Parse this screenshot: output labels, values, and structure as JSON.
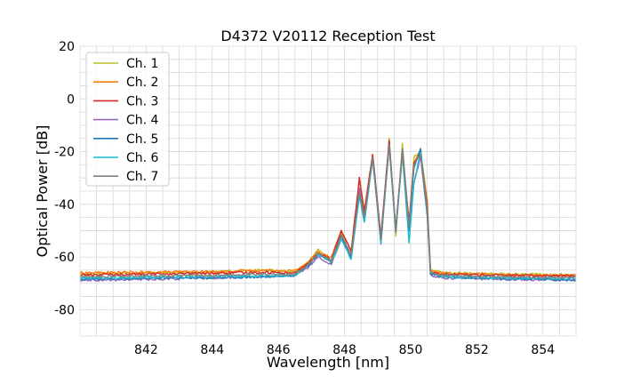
{
  "chart_data": {
    "type": "line",
    "title": "D4372 V20112 Reception Test",
    "xlabel": "Wavelength [nm]",
    "ylabel": "Optical Power [dB]",
    "xlim": [
      840,
      855
    ],
    "ylim": [
      -90,
      20
    ],
    "xticks": [
      842,
      844,
      846,
      848,
      850,
      852,
      854
    ],
    "yticks": [
      20,
      0,
      -20,
      -40,
      -60,
      -80
    ],
    "grid": true,
    "legend_position": "upper-left",
    "series": [
      {
        "name": "Ch. 1",
        "color": "#bcbd22",
        "x": [
          840.0,
          842.0,
          844.0,
          845.5,
          846.5,
          846.9,
          847.2,
          847.6,
          847.9,
          848.2,
          848.45,
          848.6,
          848.85,
          849.1,
          849.35,
          849.55,
          849.75,
          849.95,
          850.1,
          850.3,
          850.5,
          850.6,
          851.0,
          853.0,
          855.0
        ],
        "y": [
          -66.5,
          -66.0,
          -65.8,
          -65.0,
          -65.5,
          -62.0,
          -57.0,
          -62.0,
          -51.0,
          -60.0,
          -36.0,
          -44.0,
          -22.0,
          -54.0,
          -15.0,
          -52.0,
          -17.0,
          -48.0,
          -22.0,
          -20.0,
          -38.0,
          -65.0,
          -66.0,
          -66.5,
          -66.8
        ]
      },
      {
        "name": "Ch. 2",
        "color": "#ff7f0e",
        "x": [
          840.0,
          842.0,
          844.0,
          845.5,
          846.5,
          846.9,
          847.2,
          847.6,
          847.9,
          848.2,
          848.45,
          848.6,
          848.85,
          849.1,
          849.35,
          849.55,
          849.75,
          849.95,
          850.1,
          850.3,
          850.5,
          850.6,
          851.0,
          853.0,
          855.0
        ],
        "y": [
          -66.0,
          -65.8,
          -65.5,
          -65.0,
          -65.2,
          -62.0,
          -58.0,
          -60.0,
          -50.0,
          -58.0,
          -31.0,
          -42.0,
          -21.0,
          -53.0,
          -16.0,
          -49.0,
          -20.0,
          -47.0,
          -24.0,
          -20.0,
          -40.0,
          -65.0,
          -66.2,
          -66.8,
          -67.0
        ]
      },
      {
        "name": "Ch. 3",
        "color": "#d62728",
        "x": [
          840.0,
          842.0,
          844.0,
          845.5,
          846.5,
          846.9,
          847.2,
          847.6,
          847.9,
          848.2,
          848.45,
          848.6,
          848.85,
          849.1,
          849.35,
          849.55,
          849.75,
          849.95,
          850.1,
          850.3,
          850.5,
          850.6,
          851.0,
          853.0,
          855.0
        ],
        "y": [
          -66.8,
          -66.5,
          -66.2,
          -65.8,
          -66.0,
          -62.5,
          -58.5,
          -61.0,
          -50.0,
          -58.0,
          -30.0,
          -43.0,
          -21.0,
          -52.0,
          -16.0,
          -50.0,
          -20.0,
          -47.0,
          -24.0,
          -21.0,
          -40.0,
          -65.5,
          -66.5,
          -67.0,
          -67.2
        ]
      },
      {
        "name": "Ch. 4",
        "color": "#9467bd",
        "x": [
          840.0,
          842.0,
          844.0,
          845.5,
          846.5,
          846.9,
          847.2,
          847.6,
          847.9,
          848.2,
          848.45,
          848.6,
          848.85,
          849.1,
          849.35,
          849.55,
          849.75,
          849.95,
          850.1,
          850.3,
          850.5,
          850.6,
          851.0,
          853.0,
          855.0
        ],
        "y": [
          -69.0,
          -68.5,
          -68.0,
          -67.5,
          -67.0,
          -64.0,
          -60.0,
          -63.0,
          -53.0,
          -61.0,
          -34.0,
          -45.0,
          -22.0,
          -55.0,
          -17.0,
          -50.0,
          -19.0,
          -50.0,
          -32.0,
          -22.0,
          -44.0,
          -67.0,
          -68.0,
          -68.5,
          -68.8
        ]
      },
      {
        "name": "Ch. 5",
        "color": "#1f77b4",
        "x": [
          840.0,
          842.0,
          844.0,
          845.5,
          846.5,
          846.9,
          847.2,
          847.6,
          847.9,
          848.2,
          848.45,
          848.6,
          848.85,
          849.1,
          849.35,
          849.55,
          849.75,
          849.95,
          850.1,
          850.3,
          850.5,
          850.6,
          851.0,
          853.0,
          855.0
        ],
        "y": [
          -68.5,
          -68.0,
          -67.8,
          -67.5,
          -67.0,
          -63.5,
          -59.0,
          -62.0,
          -52.0,
          -60.0,
          -36.0,
          -46.0,
          -22.0,
          -54.0,
          -17.0,
          -50.0,
          -20.0,
          -49.0,
          -26.0,
          -19.0,
          -44.0,
          -66.5,
          -67.5,
          -68.2,
          -68.8
        ]
      },
      {
        "name": "Ch. 6",
        "color": "#17becf",
        "x": [
          840.0,
          842.0,
          844.0,
          845.5,
          846.5,
          846.9,
          847.2,
          847.6,
          847.9,
          848.2,
          848.45,
          848.6,
          848.85,
          849.1,
          849.35,
          849.55,
          849.75,
          849.95,
          850.1,
          850.3,
          850.5,
          850.6,
          851.0,
          853.0,
          855.0
        ],
        "y": [
          -68.0,
          -67.8,
          -67.5,
          -67.2,
          -67.0,
          -63.0,
          -59.0,
          -62.0,
          -53.0,
          -61.0,
          -37.0,
          -47.0,
          -23.0,
          -55.0,
          -18.0,
          -51.0,
          -21.0,
          -55.0,
          -32.0,
          -20.0,
          -43.0,
          -66.0,
          -67.5,
          -68.0,
          -68.3
        ]
      },
      {
        "name": "Ch. 7",
        "color": "#7f7f7f",
        "x": [
          840.0,
          842.0,
          844.0,
          845.5,
          846.5,
          846.9,
          847.2,
          847.6,
          847.9,
          848.2,
          848.45,
          848.6,
          848.85,
          849.1,
          849.35,
          849.55,
          849.75,
          849.95,
          850.1,
          850.3,
          850.5,
          850.6,
          851.0,
          853.0,
          855.0
        ],
        "y": [
          -67.5,
          -67.2,
          -67.0,
          -66.5,
          -66.5,
          -63.0,
          -58.5,
          -61.5,
          -51.5,
          -59.5,
          -35.0,
          -45.0,
          -22.5,
          -53.5,
          -17.5,
          -50.5,
          -19.5,
          -48.5,
          -25.0,
          -21.0,
          -42.0,
          -66.0,
          -67.0,
          -67.5,
          -67.8
        ]
      }
    ]
  }
}
